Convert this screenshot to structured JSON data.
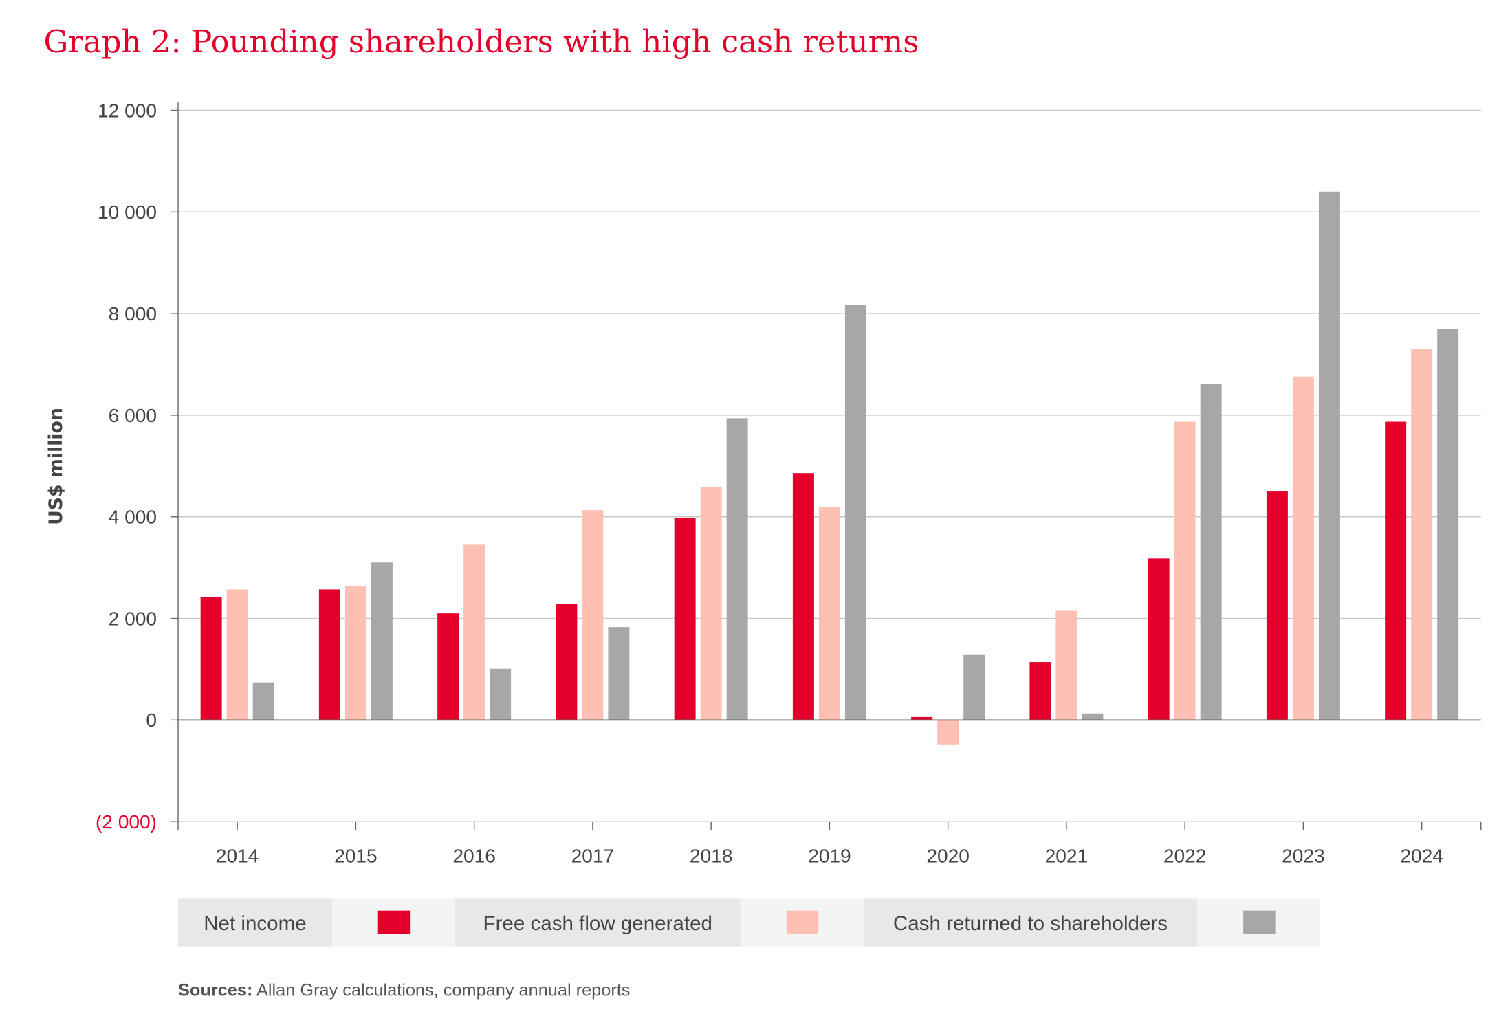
{
  "chart_data": {
    "type": "bar",
    "title": "Graph 2: Pounding shareholders with high cash returns",
    "xlabel": "",
    "ylabel": "US$ million",
    "ylim": [
      -2000,
      12000
    ],
    "yticks": [
      -2000,
      0,
      2000,
      4000,
      6000,
      8000,
      10000,
      12000
    ],
    "ytick_labels": [
      "(2 000)",
      "0",
      "2 000",
      "4 000",
      "6 000",
      "8 000",
      "10 000",
      "12 000"
    ],
    "grid": true,
    "legend_position": "bottom",
    "categories": [
      "2014",
      "2015",
      "2016",
      "2017",
      "2018",
      "2019",
      "2020",
      "2021",
      "2022",
      "2023",
      "2024"
    ],
    "series": [
      {
        "name": "Net income",
        "color": "#E4002B",
        "values": [
          2420,
          2570,
          2100,
          2290,
          3980,
          4860,
          60,
          1140,
          3180,
          4510,
          5870
        ]
      },
      {
        "name": "Free cash flow generated",
        "color": "#FFC0B4",
        "values": [
          2570,
          2630,
          3450,
          4130,
          4590,
          4190,
          -480,
          2150,
          5870,
          6760,
          7300
        ]
      },
      {
        "name": "Cash returned to shareholders",
        "color": "#A7A7AA",
        "values": [
          740,
          3100,
          1010,
          1830,
          5940,
          8170,
          1280,
          130,
          6610,
          10400,
          7700
        ]
      }
    ]
  },
  "sources": {
    "label": "Sources:",
    "text": " Allan Gray calculations, company annual reports"
  }
}
